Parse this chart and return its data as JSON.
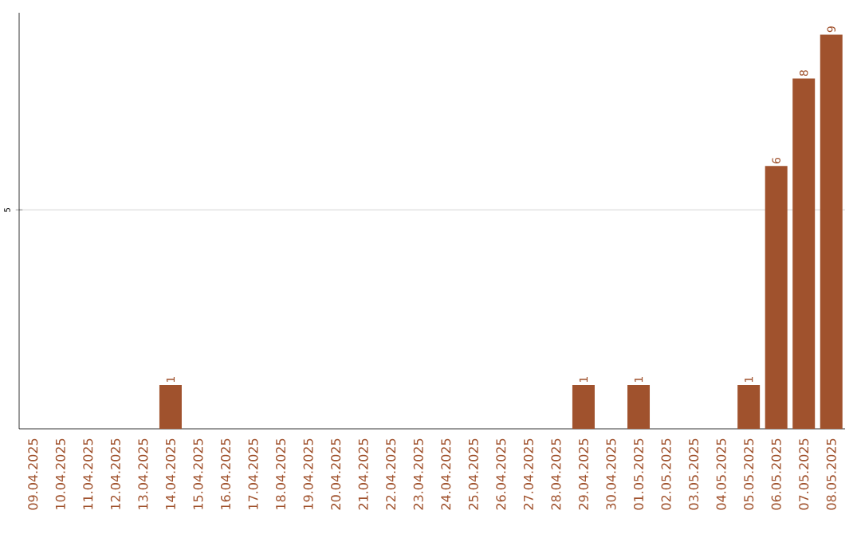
{
  "chart_data": {
    "type": "bar",
    "categories": [
      "09.04.2025",
      "10.04.2025",
      "11.04.2025",
      "12.04.2025",
      "13.04.2025",
      "14.04.2025",
      "15.04.2025",
      "16.04.2025",
      "17.04.2025",
      "18.04.2025",
      "19.04.2025",
      "20.04.2025",
      "21.04.2025",
      "22.04.2025",
      "23.04.2025",
      "24.04.2025",
      "25.04.2025",
      "26.04.2025",
      "27.04.2025",
      "28.04.2025",
      "29.04.2025",
      "30.04.2025",
      "01.05.2025",
      "02.05.2025",
      "03.05.2025",
      "04.05.2025",
      "05.05.2025",
      "06.05.2025",
      "07.05.2025",
      "08.05.2025"
    ],
    "values": [
      0,
      0,
      0,
      0,
      0,
      1,
      0,
      0,
      0,
      0,
      0,
      0,
      0,
      0,
      0,
      0,
      0,
      0,
      0,
      0,
      1,
      0,
      1,
      0,
      0,
      0,
      1,
      6,
      8,
      9
    ],
    "value_labels": [
      null,
      null,
      null,
      null,
      null,
      "1",
      null,
      null,
      null,
      null,
      null,
      null,
      null,
      null,
      null,
      null,
      null,
      null,
      null,
      null,
      "1",
      null,
      "1",
      null,
      null,
      null,
      "1",
      "6",
      "8",
      "9"
    ],
    "color": "#a0522d",
    "ylim": [
      0,
      9.5
    ],
    "yticks": [
      5
    ],
    "grid": "y"
  }
}
